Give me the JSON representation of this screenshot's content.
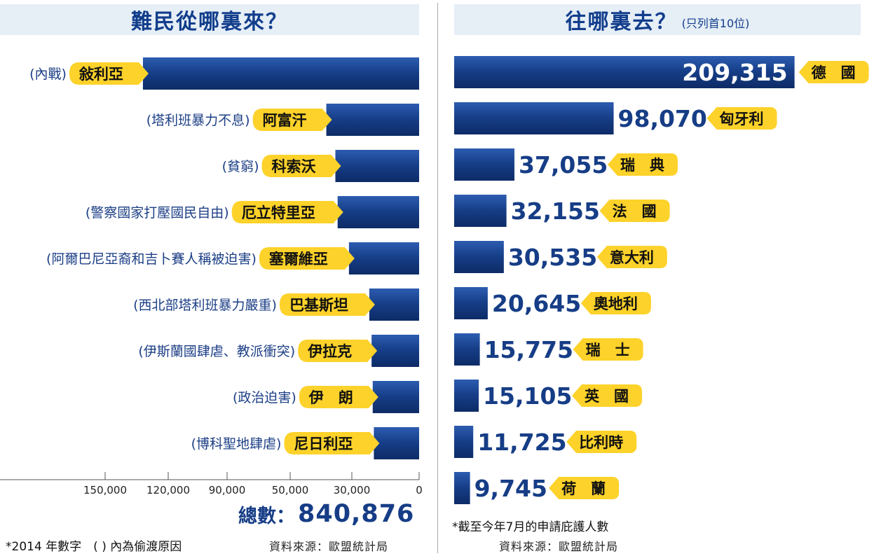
{
  "left": {
    "title": "難民從哪裏來？",
    "axis_ticks": [
      "150,000",
      "120,000",
      "90,000",
      "50,000",
      "30,000",
      "0"
    ],
    "total_label": "總數：",
    "total_value": "840,876",
    "footnote": "*2014 年數字　( ) 內為偷渡原因",
    "source": "資料來源：歐盟統計局"
  },
  "right": {
    "title": "往哪裏去？",
    "title_note": "(只列首10位)",
    "footnote": "*截至今年7月的申請庇護人數",
    "source": "資料來源：歐盟統計局"
  },
  "colors": {
    "bar": "#163d86",
    "label_bg": "#fdd22a",
    "title_bg": "#e6eef6"
  },
  "chart_data": [
    {
      "type": "bar",
      "orientation": "horizontal-reversed",
      "title": "難民從哪裏來？",
      "categories": [
        "敍利亞",
        "阿富汗",
        "科索沃",
        "厄立特里亞",
        "塞爾維亞",
        "巴基斯坦",
        "伊拉克",
        "伊　朗",
        "尼日利亞"
      ],
      "reasons": [
        "(內戰)",
        "(塔利班暴力不息)",
        "(貧窮)",
        "(警察國家打壓國民自由)",
        "(阿爾巴尼亞裔和吉卜賽人稱被迫害)",
        "(西北部塔利班暴力嚴重)",
        "(伊斯蘭國肆虐、教派衝突)",
        "(政治迫害)",
        "(博科聖地肆虐)"
      ],
      "values": [
        122000,
        41000,
        37000,
        36000,
        31000,
        22000,
        21000,
        20500,
        20000
      ],
      "xlim": [
        0,
        150000
      ]
    },
    {
      "type": "bar",
      "orientation": "horizontal",
      "title": "往哪裏去？",
      "categories": [
        "德　國",
        "匈牙利",
        "瑞　典",
        "法　國",
        "意大利",
        "奧地利",
        "瑞　士",
        "英　國",
        "比利時",
        "荷　蘭"
      ],
      "values": [
        209315,
        98070,
        37055,
        32155,
        30535,
        20645,
        15775,
        15105,
        11725,
        9745
      ],
      "value_labels": [
        "209,315",
        "98,070",
        "37,055",
        "32,155",
        "30,535",
        "20,645",
        "15,775",
        "15,105",
        "11,725",
        "9,745"
      ]
    }
  ]
}
